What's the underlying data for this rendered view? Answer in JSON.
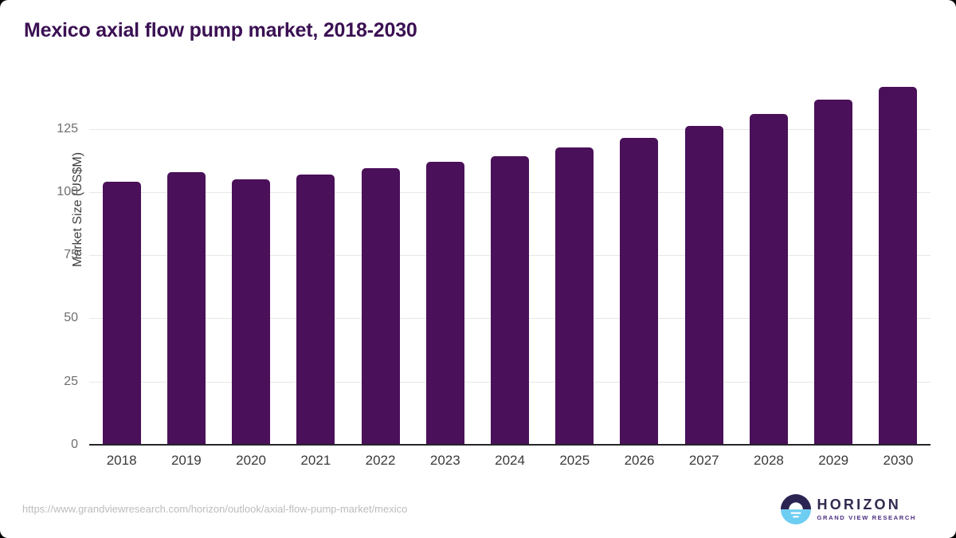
{
  "header": {
    "title": "Mexico axial flow pump market, 2018-2030"
  },
  "chart_data": {
    "type": "bar",
    "title": "Mexico axial flow pump market, 2018-2030",
    "categories": [
      "2018",
      "2019",
      "2020",
      "2021",
      "2022",
      "2023",
      "2024",
      "2025",
      "2026",
      "2027",
      "2028",
      "2029",
      "2030"
    ],
    "values": [
      104,
      108,
      105,
      107,
      109.5,
      112,
      114,
      117.5,
      121.5,
      126,
      131,
      136.5,
      141.5
    ],
    "xlabel": "",
    "ylabel": "Market Size (US$M)",
    "yticks": [
      0,
      25,
      50,
      75,
      100,
      125
    ],
    "ylim": [
      0,
      146
    ],
    "grid": true,
    "legend": false,
    "bar_color": "#4a1059",
    "gridline_color": "#e7e7e7",
    "axis_line_color": "#26262c",
    "title_color": "#3b1053"
  },
  "footer": {
    "source_url": "https://www.grandviewresearch.com/horizon/outlook/axial-flow-pump-market/mexico",
    "logo": {
      "name": "HORIZON",
      "subtitle": "GRAND VIEW RESEARCH",
      "mark_top_color": "#2b2352",
      "mark_bottom_color": "#6ecdf2"
    }
  }
}
